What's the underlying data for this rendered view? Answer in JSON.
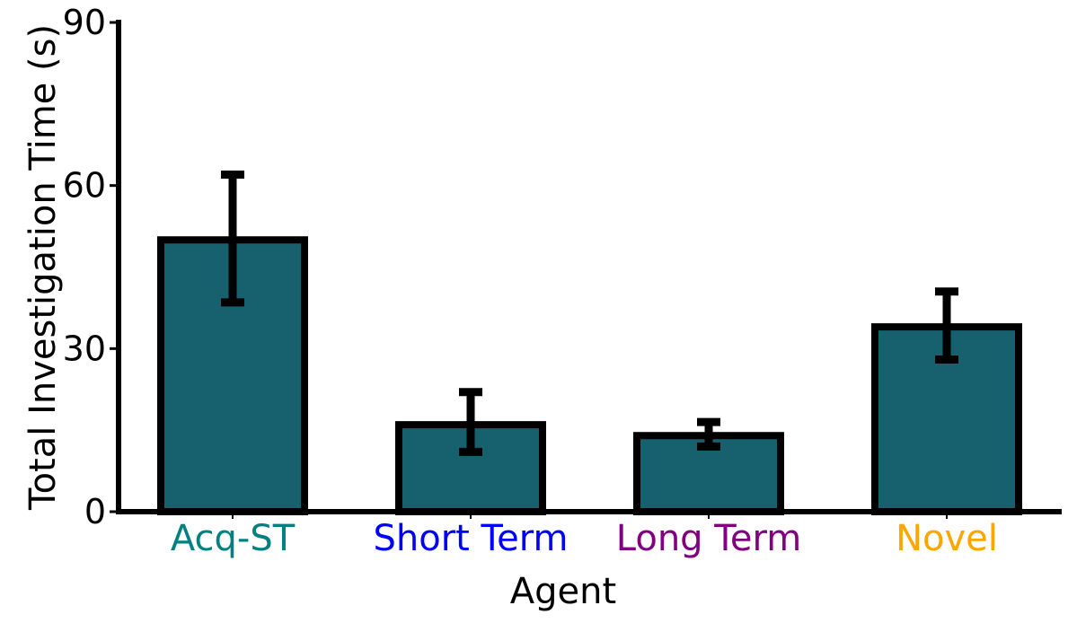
{
  "chart_data": {
    "type": "bar",
    "title": "",
    "xlabel": "Agent",
    "ylabel": "Total Investigation Time (s)",
    "ylim": [
      0,
      90
    ],
    "yticks": [
      0,
      30,
      60,
      90
    ],
    "categories": [
      "Acq-ST",
      "Short Term",
      "Long Term",
      "Novel"
    ],
    "category_label_colors": [
      "#008080",
      "#0000FF",
      "#800080",
      "#FFA500"
    ],
    "values": [
      50,
      16,
      14,
      34
    ],
    "error_low": [
      38.5,
      11,
      12,
      28
    ],
    "error_high": [
      62,
      22,
      16.5,
      40.5
    ],
    "bar_color": "#17606E",
    "edge_color": "#000000",
    "grid": false,
    "legend": "none"
  }
}
